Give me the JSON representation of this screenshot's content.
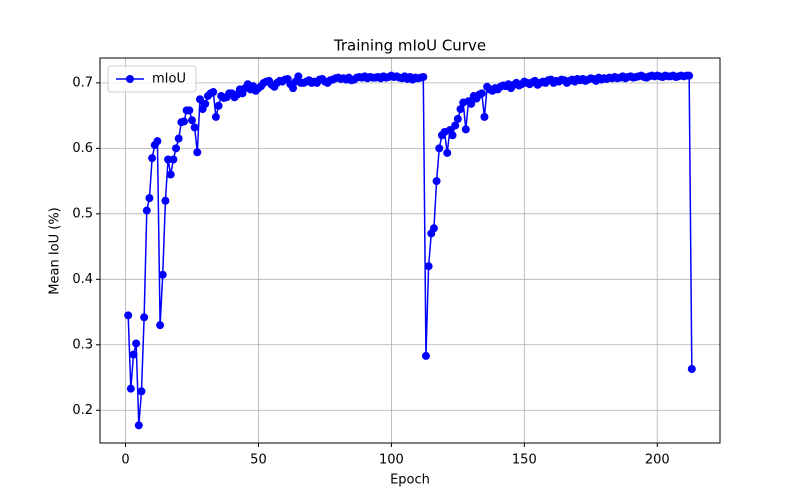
{
  "chart_data": {
    "type": "line",
    "title": "Training mIoU Curve",
    "xlabel": "Epoch",
    "ylabel": "Mean IoU (%)",
    "x": [
      1,
      2,
      3,
      4,
      5,
      6,
      7,
      8,
      9,
      10,
      11,
      12,
      13,
      14,
      15,
      16,
      17,
      18,
      19,
      20,
      21,
      22,
      23,
      24,
      25,
      26,
      27,
      28,
      29,
      30,
      31,
      32,
      33,
      34,
      35,
      36,
      37,
      38,
      39,
      40,
      41,
      42,
      43,
      44,
      45,
      46,
      47,
      48,
      49,
      50,
      51,
      52,
      53,
      54,
      55,
      56,
      57,
      58,
      59,
      60,
      61,
      62,
      63,
      64,
      65,
      66,
      67,
      68,
      69,
      70,
      71,
      72,
      73,
      74,
      75,
      76,
      77,
      78,
      79,
      80,
      81,
      82,
      83,
      84,
      85,
      86,
      87,
      88,
      89,
      90,
      91,
      92,
      93,
      94,
      95,
      96,
      97,
      98,
      99,
      100,
      101,
      102,
      103,
      104,
      105,
      106,
      107,
      108,
      109,
      110,
      111,
      112,
      113,
      114,
      115,
      116,
      117,
      118,
      119,
      120,
      121,
      122,
      123,
      124,
      125,
      126,
      127,
      128,
      129,
      130,
      131,
      132,
      133,
      134,
      135,
      136,
      137,
      138,
      139,
      140,
      141,
      142,
      143,
      144,
      145,
      146,
      147,
      148,
      149,
      150,
      151,
      152,
      153,
      154,
      155,
      156,
      157,
      158,
      159,
      160,
      161,
      162,
      163,
      164,
      165,
      166,
      167,
      168,
      169,
      170,
      171,
      172,
      173,
      174,
      175,
      176,
      177,
      178,
      179,
      180,
      181,
      182,
      183,
      184,
      185,
      186,
      187,
      188,
      189,
      190,
      191,
      192,
      193,
      194,
      195,
      196,
      197,
      198,
      199,
      200,
      201,
      202,
      203,
      204,
      205,
      206,
      207,
      208,
      209,
      210,
      211,
      212,
      213
    ],
    "series": [
      {
        "name": "mIoU",
        "color": "#0000ff",
        "values": [
          0.345,
          0.233,
          0.285,
          0.302,
          0.177,
          0.229,
          0.342,
          0.505,
          0.524,
          0.585,
          0.605,
          0.611,
          0.33,
          0.407,
          0.52,
          0.583,
          0.56,
          0.583,
          0.6,
          0.615,
          0.64,
          0.641,
          0.658,
          0.658,
          0.643,
          0.632,
          0.594,
          0.675,
          0.66,
          0.668,
          0.68,
          0.684,
          0.686,
          0.648,
          0.665,
          0.68,
          0.677,
          0.678,
          0.684,
          0.684,
          0.678,
          0.682,
          0.69,
          0.684,
          0.692,
          0.698,
          0.69,
          0.695,
          0.688,
          0.692,
          0.695,
          0.7,
          0.702,
          0.703,
          0.697,
          0.694,
          0.7,
          0.703,
          0.702,
          0.705,
          0.706,
          0.698,
          0.692,
          0.702,
          0.71,
          0.7,
          0.7,
          0.702,
          0.704,
          0.7,
          0.702,
          0.7,
          0.705,
          0.706,
          0.702,
          0.7,
          0.704,
          0.705,
          0.707,
          0.708,
          0.706,
          0.707,
          0.705,
          0.708,
          0.704,
          0.705,
          0.708,
          0.709,
          0.708,
          0.71,
          0.707,
          0.709,
          0.708,
          0.708,
          0.709,
          0.707,
          0.71,
          0.708,
          0.709,
          0.711,
          0.709,
          0.71,
          0.708,
          0.707,
          0.71,
          0.706,
          0.709,
          0.705,
          0.708,
          0.707,
          0.708,
          0.709,
          0.283,
          0.42,
          0.47,
          0.478,
          0.55,
          0.6,
          0.62,
          0.625,
          0.593,
          0.628,
          0.62,
          0.635,
          0.645,
          0.66,
          0.67,
          0.629,
          0.672,
          0.668,
          0.68,
          0.676,
          0.682,
          0.684,
          0.648,
          0.694,
          0.69,
          0.688,
          0.692,
          0.69,
          0.694,
          0.696,
          0.695,
          0.698,
          0.692,
          0.697,
          0.7,
          0.696,
          0.698,
          0.702,
          0.7,
          0.698,
          0.701,
          0.703,
          0.697,
          0.7,
          0.702,
          0.7,
          0.704,
          0.705,
          0.7,
          0.703,
          0.702,
          0.705,
          0.704,
          0.7,
          0.703,
          0.705,
          0.702,
          0.706,
          0.704,
          0.706,
          0.703,
          0.705,
          0.707,
          0.706,
          0.703,
          0.708,
          0.705,
          0.707,
          0.706,
          0.708,
          0.707,
          0.709,
          0.707,
          0.708,
          0.71,
          0.707,
          0.709,
          0.71,
          0.708,
          0.709,
          0.71,
          0.711,
          0.709,
          0.708,
          0.71,
          0.711,
          0.71,
          0.711,
          0.71,
          0.709,
          0.711,
          0.71,
          0.71,
          0.711,
          0.709,
          0.71,
          0.711,
          0.71,
          0.711,
          0.711,
          0.263
        ]
      }
    ],
    "xlim": [
      -9.6,
      223.6
    ],
    "xticks": [
      0,
      50,
      100,
      150,
      200
    ],
    "ylim": [
      0.15,
      0.738
    ],
    "yticks": [
      0.2,
      0.3,
      0.4,
      0.5,
      0.6,
      0.7
    ],
    "grid": true,
    "legend": "upper left",
    "marker": "circle"
  }
}
